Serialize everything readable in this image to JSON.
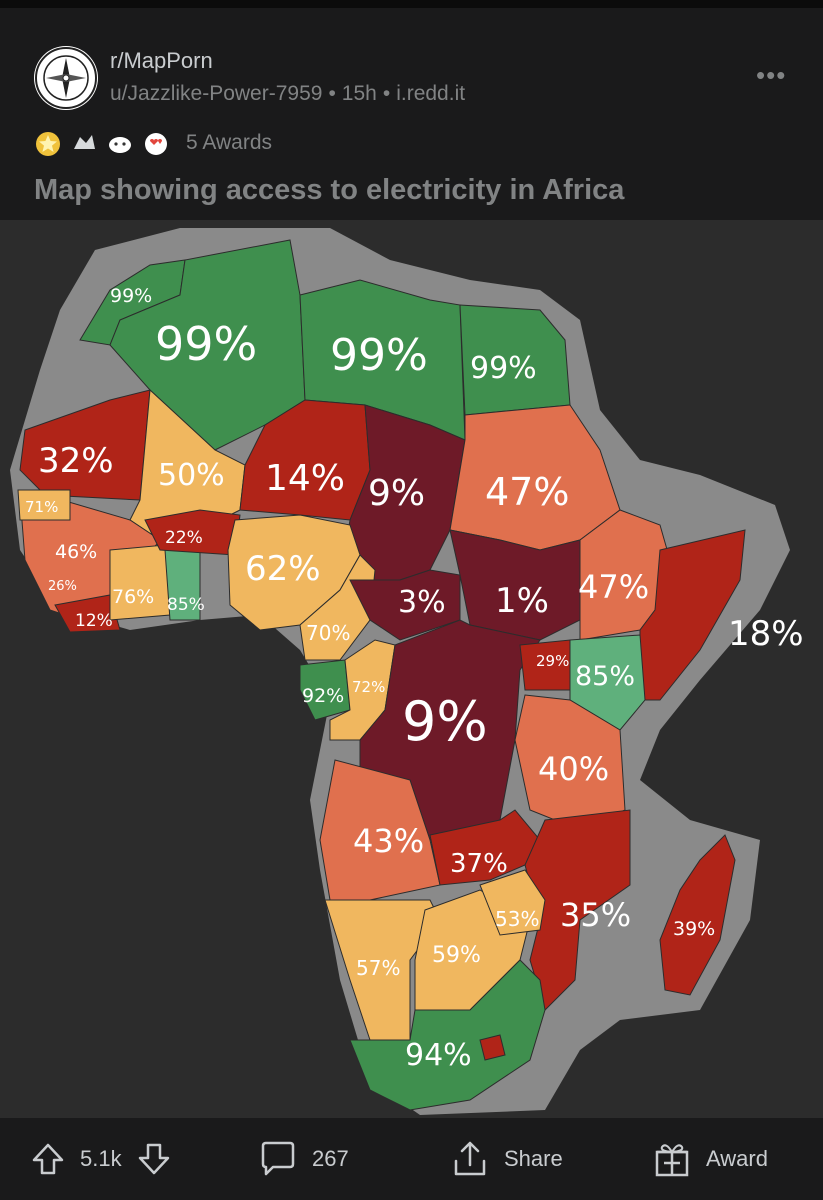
{
  "post": {
    "subreddit": "r/MapPorn",
    "author": "u/Jazzlike-Power-7959",
    "age": "15h",
    "domain": "i.redd.it",
    "awards_text": "5 Awards",
    "title": "Map showing access to electricity in Africa",
    "more_icon": "more-horizontal-icon"
  },
  "map": {
    "colors": {
      "dark_green": "#3f8f4e",
      "light_green": "#5fb07c",
      "yellow": "#f0b75f",
      "orange": "#e0704e",
      "red": "#b02418",
      "maroon": "#6e1a28",
      "border_halo": "#8a8a8a",
      "background": "#2c2c2c"
    },
    "labels": [
      {
        "name": "morocco",
        "text": "99%"
      },
      {
        "name": "algeria",
        "text": "99%"
      },
      {
        "name": "libya",
        "text": "99%"
      },
      {
        "name": "egypt",
        "text": "99%"
      },
      {
        "name": "mauritania",
        "text": "32%"
      },
      {
        "name": "mali",
        "text": "50%"
      },
      {
        "name": "niger",
        "text": "14%"
      },
      {
        "name": "chad",
        "text": "9%"
      },
      {
        "name": "sudan",
        "text": "47%"
      },
      {
        "name": "senegal",
        "text": "71%"
      },
      {
        "name": "guinea",
        "text": "46%"
      },
      {
        "name": "sierra-leone",
        "text": "26%"
      },
      {
        "name": "liberia",
        "text": "12%"
      },
      {
        "name": "cote-divoire",
        "text": "76%"
      },
      {
        "name": "ghana",
        "text": "85%"
      },
      {
        "name": "burkina-faso",
        "text": "22%"
      },
      {
        "name": "nigeria",
        "text": "62%"
      },
      {
        "name": "cameroon",
        "text": "70%"
      },
      {
        "name": "car",
        "text": "3%"
      },
      {
        "name": "south-sudan",
        "text": "1%"
      },
      {
        "name": "ethiopia",
        "text": "47%"
      },
      {
        "name": "somalia",
        "text": "18%"
      },
      {
        "name": "gabon",
        "text": "92%"
      },
      {
        "name": "congo",
        "text": "72%"
      },
      {
        "name": "drc",
        "text": "9%"
      },
      {
        "name": "uganda",
        "text": "29%"
      },
      {
        "name": "kenya",
        "text": "85%"
      },
      {
        "name": "tanzania",
        "text": "40%"
      },
      {
        "name": "angola",
        "text": "43%"
      },
      {
        "name": "zambia",
        "text": "37%"
      },
      {
        "name": "zimbabwe",
        "text": "53%"
      },
      {
        "name": "mozambique",
        "text": "35%"
      },
      {
        "name": "madagascar",
        "text": "39%"
      },
      {
        "name": "namibia",
        "text": "57%"
      },
      {
        "name": "botswana",
        "text": "59%"
      },
      {
        "name": "south-africa",
        "text": "94%"
      }
    ]
  },
  "footer": {
    "upvote_icon": "upvote-arrow-icon",
    "score": "5.1k",
    "downvote_icon": "downvote-arrow-icon",
    "comment_icon": "comment-bubble-icon",
    "comments": "267",
    "share_icon": "share-icon",
    "share_label": "Share",
    "award_icon": "gift-icon",
    "award_label": "Award"
  }
}
